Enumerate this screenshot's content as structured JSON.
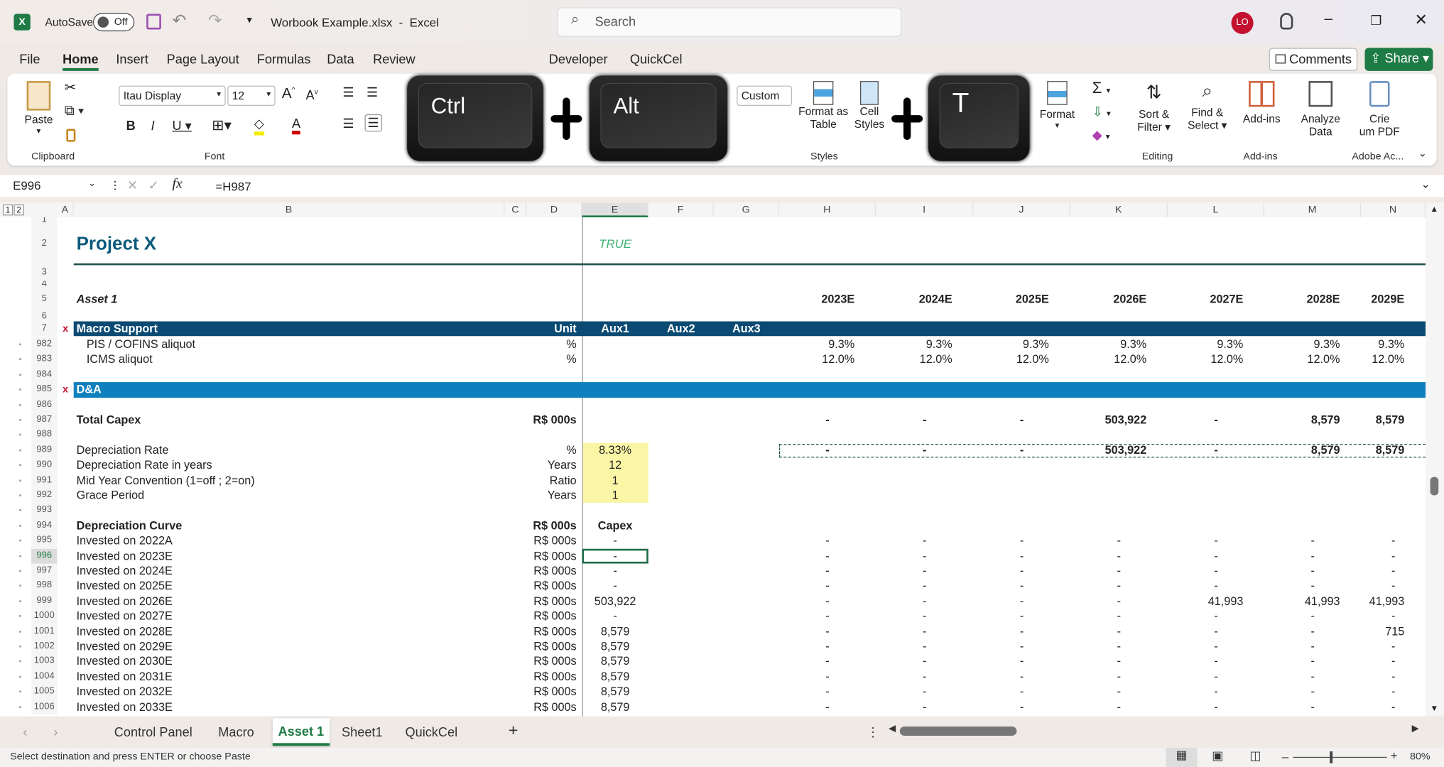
{
  "app": {
    "autosave_label": "AutoSave",
    "autosave_state": "Off",
    "title": "Worbook Example.xlsx  -  Excel",
    "search_placeholder": "Search",
    "user_initials": "LO",
    "comments": "Comments",
    "share": "Share"
  },
  "menu_tabs": [
    "File",
    "Home",
    "Insert",
    "Page Layout",
    "Formulas",
    "Data",
    "Review",
    "Developer",
    "QuickCel"
  ],
  "ribbon": {
    "paste": "Paste",
    "font_name": "Itau Display",
    "font_size": "12",
    "number_format": "Custom",
    "format_as_table": [
      "Format as",
      "Table"
    ],
    "cell_styles": [
      "Cell",
      "Styles"
    ],
    "format": "Format",
    "sort_filter": [
      "Sort &",
      "Filter"
    ],
    "find_select": [
      "Find &",
      "Select"
    ],
    "addins": "Add-ins",
    "analyze": [
      "Analyze",
      "Data"
    ],
    "pdf": [
      "Crie",
      "um PDF"
    ],
    "groups": {
      "clipboard": "Clipboard",
      "font": "Font",
      "styles": "Styles",
      "editing": "Editing",
      "addins": "Add-ins",
      "adobe": "Adobe Ac..."
    }
  },
  "shortcut_keys": [
    "Ctrl",
    "Alt",
    "T"
  ],
  "formula_bar": {
    "name_box": "E996",
    "formula": "=H987"
  },
  "columns": [
    "A",
    "B",
    "C",
    "D",
    "E",
    "F",
    "G",
    "H",
    "I",
    "J",
    "K",
    "L",
    "M",
    "N"
  ],
  "outline_levels": [
    "1",
    "2"
  ],
  "rows": [
    {
      "n": "1"
    },
    {
      "n": "2",
      "type": "title",
      "B": "Project X",
      "E": "TRUE"
    },
    {
      "n": "3"
    },
    {
      "n": "4"
    },
    {
      "n": "5",
      "type": "years",
      "B": "Asset 1",
      "vals": [
        "2023E",
        "2024E",
        "2025E",
        "2026E",
        "2027E",
        "2028E",
        "2029E"
      ]
    },
    {
      "n": "6"
    },
    {
      "n": "7",
      "type": "hdr",
      "A": "x",
      "B": "Macro Support",
      "D": "Unit",
      "E": "Aux1",
      "F": "Aux2",
      "G": "Aux3"
    },
    {
      "n": "982",
      "type": "indent",
      "B": "PIS / COFINS aliquot",
      "D": "%",
      "vals": [
        "9.3%",
        "9.3%",
        "9.3%",
        "9.3%",
        "9.3%",
        "9.3%",
        "9.3%"
      ]
    },
    {
      "n": "983",
      "type": "indent",
      "B": "ICMS aliquot",
      "D": "%",
      "vals": [
        "12.0%",
        "12.0%",
        "12.0%",
        "12.0%",
        "12.0%",
        "12.0%",
        "12.0%"
      ]
    },
    {
      "n": "984"
    },
    {
      "n": "985",
      "type": "sec",
      "A": "x",
      "B": "D&A"
    },
    {
      "n": "986"
    },
    {
      "n": "987",
      "type": "bold",
      "B": "Total Capex",
      "D": "R$ 000s",
      "vals": [
        "-",
        "-",
        "-",
        "503,922",
        "-",
        "8,579",
        "8,579"
      ]
    },
    {
      "n": "988"
    },
    {
      "n": "989",
      "type": "copy",
      "B": "Depreciation Rate",
      "D": "%",
      "E": "8.33%",
      "vals": [
        "-",
        "-",
        "-",
        "503,922",
        "-",
        "8,579",
        "8,579"
      ]
    },
    {
      "n": "990",
      "type": "input",
      "B": "Depreciation Rate in years",
      "D": "Years",
      "E": "12"
    },
    {
      "n": "991",
      "type": "input",
      "B": "Mid Year Convention (1=off ; 2=on)",
      "D": "Ratio",
      "E": "1"
    },
    {
      "n": "992",
      "type": "input",
      "B": "Grace Period",
      "D": "Years",
      "E": "1"
    },
    {
      "n": "993"
    },
    {
      "n": "994",
      "type": "bold",
      "B": "Depreciation Curve",
      "D": "R$ 000s",
      "E": "Capex"
    },
    {
      "n": "995",
      "B": "Invested on 2022A",
      "D": "R$ 000s",
      "E": "-",
      "vals": [
        "-",
        "-",
        "-",
        "-",
        "-",
        "-",
        "-"
      ]
    },
    {
      "n": "996",
      "type": "active",
      "B": "Invested on 2023E",
      "D": "R$ 000s",
      "E": "-",
      "vals": [
        "-",
        "-",
        "-",
        "-",
        "-",
        "-",
        "-"
      ]
    },
    {
      "n": "997",
      "B": "Invested on 2024E",
      "D": "R$ 000s",
      "E": "-",
      "vals": [
        "-",
        "-",
        "-",
        "-",
        "-",
        "-",
        "-"
      ]
    },
    {
      "n": "998",
      "B": "Invested on 2025E",
      "D": "R$ 000s",
      "E": "-",
      "vals": [
        "-",
        "-",
        "-",
        "-",
        "-",
        "-",
        "-"
      ]
    },
    {
      "n": "999",
      "B": "Invested on 2026E",
      "D": "R$ 000s",
      "E": "503,922",
      "vals": [
        "-",
        "-",
        "-",
        "-",
        "41,993",
        "41,993",
        "41,993"
      ]
    },
    {
      "n": "1000",
      "B": "Invested on 2027E",
      "D": "R$ 000s",
      "E": "-",
      "vals": [
        "-",
        "-",
        "-",
        "-",
        "-",
        "-",
        "-"
      ]
    },
    {
      "n": "1001",
      "B": "Invested on 2028E",
      "D": "R$ 000s",
      "E": "8,579",
      "vals": [
        "-",
        "-",
        "-",
        "-",
        "-",
        "-",
        "715"
      ]
    },
    {
      "n": "1002",
      "B": "Invested on 2029E",
      "D": "R$ 000s",
      "E": "8,579",
      "vals": [
        "-",
        "-",
        "-",
        "-",
        "-",
        "-",
        "-"
      ]
    },
    {
      "n": "1003",
      "B": "Invested on 2030E",
      "D": "R$ 000s",
      "E": "8,579",
      "vals": [
        "-",
        "-",
        "-",
        "-",
        "-",
        "-",
        "-"
      ]
    },
    {
      "n": "1004",
      "B": "Invested on 2031E",
      "D": "R$ 000s",
      "E": "8,579",
      "vals": [
        "-",
        "-",
        "-",
        "-",
        "-",
        "-",
        "-"
      ]
    },
    {
      "n": "1005",
      "B": "Invested on 2032E",
      "D": "R$ 000s",
      "E": "8,579",
      "vals": [
        "-",
        "-",
        "-",
        "-",
        "-",
        "-",
        "-"
      ]
    },
    {
      "n": "1006",
      "B": "Invested on 2033E",
      "D": "R$ 000s",
      "E": "8,579",
      "vals": [
        "-",
        "-",
        "-",
        "-",
        "-",
        "-",
        "-"
      ]
    }
  ],
  "sheet_tabs": [
    "Control Panel",
    "Macro",
    "Asset 1",
    "Sheet1",
    "QuickCel"
  ],
  "active_sheet": "Asset 1",
  "status": {
    "message": "Select destination and press ENTER or choose Paste",
    "zoom": "80%"
  },
  "colors": {
    "header_dark": "#0b4a72",
    "section": "#0e80bd",
    "title": "#0b5a7c",
    "true_green": "#3bb273",
    "input_yellow": "#fbf6a6",
    "excel_green": "#1e7b45",
    "avatar": "#c3102e"
  }
}
